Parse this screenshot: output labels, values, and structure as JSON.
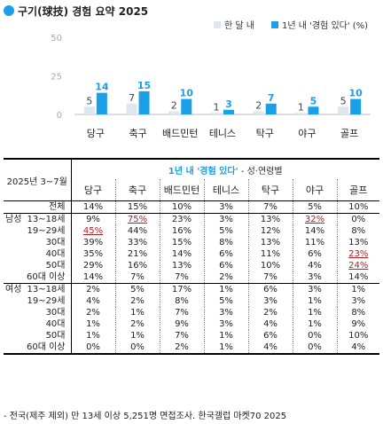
{
  "title": "구기(球技) 경험 요약 2025",
  "colors": {
    "accent": "#1aa0e8",
    "light": "#dde7f0",
    "highlight": "#b22222"
  },
  "chart_data": {
    "type": "bar",
    "categories": [
      "당구",
      "축구",
      "배드민턴",
      "테니스",
      "탁구",
      "야구",
      "골프"
    ],
    "series": [
      {
        "name": "한 달 내",
        "values": [
          5,
          7,
          2,
          1,
          2,
          1,
          5
        ],
        "color": "#dde7f0"
      },
      {
        "name": "1년 내 '경험 있다' (%)",
        "values": [
          14,
          15,
          10,
          3,
          7,
          5,
          10
        ],
        "color": "#1aa0e8"
      }
    ],
    "yticks": [
      "50",
      "25",
      "0"
    ],
    "ylim": [
      0,
      50
    ],
    "grid": false,
    "legend": "top-right"
  },
  "table": {
    "corner": "2025년 3~7월",
    "subtitle_main": "1년 내 '경험 있다'",
    "subtitle_rest": " - 성·연령별",
    "columns": [
      "당구",
      "축구",
      "배드민턴",
      "테니스",
      "탁구",
      "야구",
      "골프"
    ],
    "total": {
      "label": "전체",
      "values": [
        "14%",
        "15%",
        "10%",
        "3%",
        "7%",
        "5%",
        "10%"
      ]
    },
    "groups": [
      {
        "name": "남성",
        "rows": [
          {
            "label": "13~18세",
            "values": [
              "9%",
              "75%",
              "23%",
              "3%",
              "13%",
              "32%",
              "0%"
            ],
            "hl": [
              1,
              5
            ]
          },
          {
            "label": "19~29세",
            "values": [
              "45%",
              "44%",
              "16%",
              "5%",
              "12%",
              "14%",
              "8%"
            ],
            "hl": [
              0
            ]
          },
          {
            "label": "30대",
            "values": [
              "39%",
              "33%",
              "15%",
              "8%",
              "13%",
              "11%",
              "13%"
            ],
            "hl": []
          },
          {
            "label": "40대",
            "values": [
              "35%",
              "21%",
              "14%",
              "6%",
              "11%",
              "6%",
              "23%"
            ],
            "hl": [
              6
            ]
          },
          {
            "label": "50대",
            "values": [
              "29%",
              "16%",
              "13%",
              "6%",
              "10%",
              "4%",
              "24%"
            ],
            "hl": [
              6
            ]
          },
          {
            "label": "60대 이상",
            "values": [
              "14%",
              "7%",
              "7%",
              "2%",
              "7%",
              "3%",
              "14%"
            ],
            "hl": []
          }
        ]
      },
      {
        "name": "여성",
        "rows": [
          {
            "label": "13~18세",
            "values": [
              "2%",
              "5%",
              "17%",
              "1%",
              "6%",
              "3%",
              "1%"
            ],
            "hl": []
          },
          {
            "label": "19~29세",
            "values": [
              "4%",
              "2%",
              "8%",
              "5%",
              "3%",
              "1%",
              "3%"
            ],
            "hl": []
          },
          {
            "label": "30대",
            "values": [
              "2%",
              "1%",
              "7%",
              "3%",
              "2%",
              "1%",
              "8%"
            ],
            "hl": []
          },
          {
            "label": "40대",
            "values": [
              "1%",
              "2%",
              "9%",
              "3%",
              "4%",
              "1%",
              "9%"
            ],
            "hl": []
          },
          {
            "label": "50대",
            "values": [
              "1%",
              "1%",
              "7%",
              "1%",
              "6%",
              "0%",
              "10%"
            ],
            "hl": []
          },
          {
            "label": "60대 이상",
            "values": [
              "0%",
              "0%",
              "2%",
              "1%",
              "4%",
              "0%",
              "4%"
            ],
            "hl": []
          }
        ]
      }
    ]
  },
  "footnote": "- 전국(제주 제외) 만 13세 이상 5,251명 면접조사. 한국갤럽 마켓70 2025"
}
